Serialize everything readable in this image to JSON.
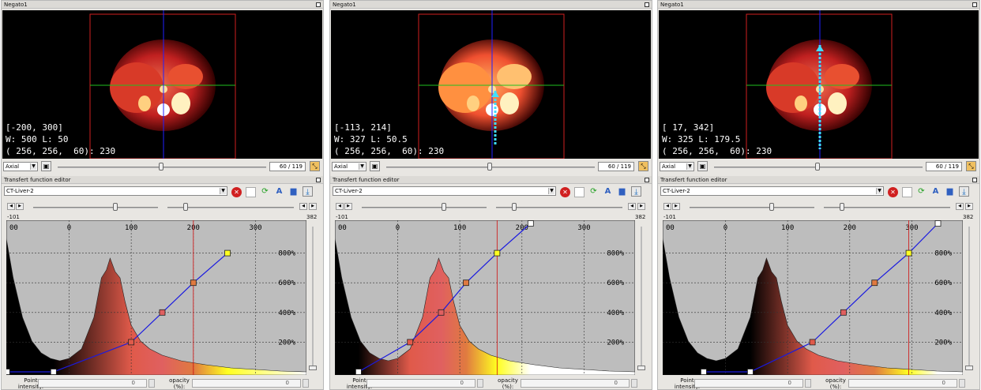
{
  "panels": [
    {
      "negato_title": "Negato1",
      "overlay": {
        "line1": "[-200, 300]",
        "line2": "W: 500 L: 50",
        "line3": "( 256, 256,  60): 230"
      },
      "orientation": "Axial",
      "slice": "60 / 119",
      "tf_title": "Transfert function editor",
      "preset": "CT-Liver-2",
      "range_min": "-101",
      "range_max": "382",
      "x_ticks": [
        "00",
        "0",
        "100",
        "200",
        "300"
      ],
      "y_ticks": [
        "800%",
        "600%",
        "400%",
        "200%"
      ],
      "point_label": "Point intensity:",
      "opacity_label": "opacity (%):",
      "point_value": "0",
      "opacity_value": "0",
      "transfer_points": [
        {
          "intensity": -100,
          "opacity": 0,
          "color": "#ffffff"
        },
        {
          "intensity": -25,
          "opacity": 0,
          "color": "#ffffff"
        },
        {
          "intensity": 100,
          "opacity": 200,
          "color": "#e05a4a"
        },
        {
          "intensity": 150,
          "opacity": 400,
          "color": "#e06060"
        },
        {
          "intensity": 200,
          "opacity": 600,
          "color": "#e07a40"
        },
        {
          "intensity": 255,
          "opacity": 800,
          "color": "#ffff20"
        }
      ]
    },
    {
      "negato_title": "Negato1",
      "overlay": {
        "line1": "[-113, 214]",
        "line2": "W: 327 L: 50.5",
        "line3": "( 256, 256,  60): 230"
      },
      "orientation": "Axial",
      "slice": "60 / 119",
      "tf_title": "Transfert function editor",
      "preset": "CT-Liver-2",
      "range_min": "-101",
      "range_max": "382",
      "x_ticks": [
        "00",
        "0",
        "100",
        "200",
        "300"
      ],
      "y_ticks": [
        "800%",
        "600%",
        "400%",
        "200%"
      ],
      "point_label": "Point intensity:",
      "opacity_label": "opacity (%):",
      "point_value": "0",
      "opacity_value": "0",
      "transfer_points": [
        {
          "intensity": -63,
          "opacity": 0,
          "color": "#ffffff"
        },
        {
          "intensity": 20,
          "opacity": 200,
          "color": "#e05a4a"
        },
        {
          "intensity": 70,
          "opacity": 400,
          "color": "#e06060"
        },
        {
          "intensity": 110,
          "opacity": 600,
          "color": "#e07a40"
        },
        {
          "intensity": 160,
          "opacity": 800,
          "color": "#ffff20"
        },
        {
          "intensity": 214,
          "opacity": 1000,
          "color": "#ffffff"
        }
      ]
    },
    {
      "negato_title": "Negato1",
      "overlay": {
        "line1": "[ 17, 342]",
        "line2": "W: 325 L: 179.5",
        "line3": "( 256, 256,  60): 230"
      },
      "orientation": "Axial",
      "slice": "60 / 119",
      "tf_title": "Transfert function editor",
      "preset": "CT-Liver-2",
      "range_min": "-101",
      "range_max": "382",
      "x_ticks": [
        "00",
        "0",
        "100",
        "200",
        "300"
      ],
      "y_ticks": [
        "800%",
        "600%",
        "400%",
        "200%"
      ],
      "point_label": "Point intensity:",
      "opacity_label": "opacity (%):",
      "point_value": "0",
      "opacity_value": "0",
      "transfer_points": [
        {
          "intensity": -35,
          "opacity": 0,
          "color": "#ffffff"
        },
        {
          "intensity": 40,
          "opacity": 0,
          "color": "#ffffff"
        },
        {
          "intensity": 140,
          "opacity": 200,
          "color": "#e05a4a"
        },
        {
          "intensity": 190,
          "opacity": 400,
          "color": "#e06060"
        },
        {
          "intensity": 240,
          "opacity": 600,
          "color": "#e07a40"
        },
        {
          "intensity": 295,
          "opacity": 800,
          "color": "#ffff20"
        },
        {
          "intensity": 342,
          "opacity": 1000,
          "color": "#ffffff"
        }
      ]
    }
  ],
  "colors": {
    "line": "#1a1ae0",
    "crosshair_v": "#2020ff",
    "crosshair_h": "#20c020",
    "frame": "#d02020",
    "marker": "#d01010"
  }
}
